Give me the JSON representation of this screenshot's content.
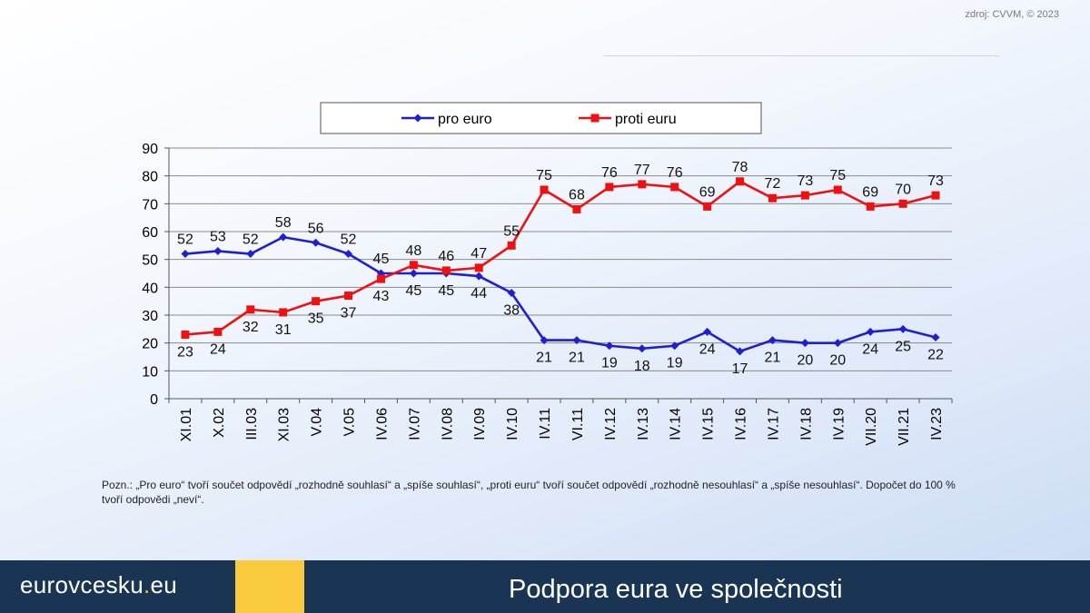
{
  "header": {
    "source": "zdroj: CVVM, © 2023"
  },
  "chart_data": {
    "type": "line",
    "categories": [
      "XI.01",
      "X.02",
      "III.03",
      "XI.03",
      "V.04",
      "V.05",
      "IV.06",
      "IV.07",
      "IV.08",
      "IV.09",
      "IV.10",
      "IV.11",
      "VI.11",
      "IV.12",
      "IV.13",
      "IV.14",
      "IV.15",
      "IV.16",
      "IV.17",
      "IV.18",
      "IV.19",
      "VII.20",
      "VII.21",
      "IV.23"
    ],
    "ylim": [
      0,
      90
    ],
    "yticks": [
      0,
      10,
      20,
      30,
      40,
      50,
      60,
      70,
      80,
      90
    ],
    "grid": true,
    "legend_position": "top",
    "series": [
      {
        "name": "pro euro",
        "color": "#1f1fd0",
        "marker": "diamond",
        "values": [
          52,
          53,
          52,
          58,
          56,
          52,
          45,
          45,
          45,
          44,
          38,
          21,
          21,
          19,
          18,
          19,
          24,
          17,
          21,
          20,
          20,
          24,
          25,
          22
        ]
      },
      {
        "name": "proti euru",
        "color": "#ee1111",
        "marker": "square",
        "values": [
          23,
          24,
          32,
          31,
          35,
          37,
          43,
          48,
          46,
          47,
          55,
          75,
          68,
          76,
          77,
          76,
          69,
          78,
          72,
          73,
          75,
          69,
          70,
          73
        ]
      }
    ]
  },
  "note": {
    "text": "Pozn.: „Pro euro“ tvoří součet odpovědí „rozhodně souhlasí“ a „spíše souhlasí“, „proti euru“ tvoří součet odpovědí „rozhodně nesouhlasí“ a „spíše nesouhlasí“. Dopočet do 100 % tvoří odpovědi „neví“."
  },
  "footer": {
    "brand_main": "eurovcesku",
    "brand_dot": ".",
    "brand_tld": "eu",
    "title": "Podpora eura ve společnosti"
  },
  "colors": {
    "footer_bg": "#1a3453",
    "footer_accent": "#f9c93e",
    "brand_dot": "#f5c518"
  }
}
